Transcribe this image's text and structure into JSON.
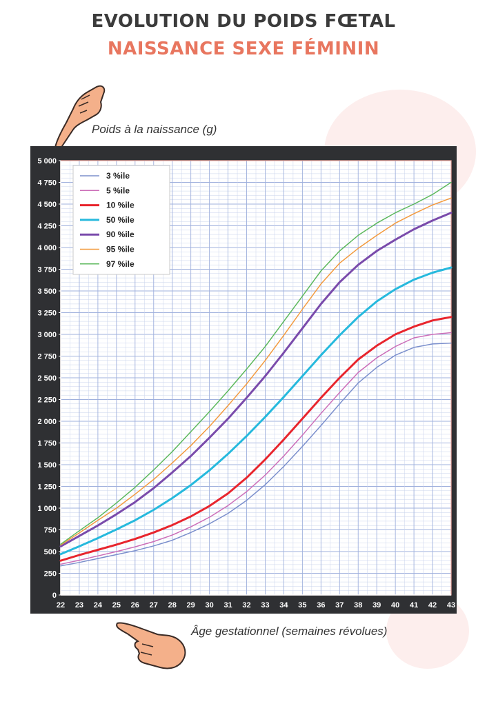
{
  "header": {
    "title": "EVOLUTION DU POIDS FŒTAL",
    "subtitle": "NAISSANCE SEXE FÉMININ"
  },
  "colors": {
    "title": "#3b3b3b",
    "subtitle": "#e8765f",
    "frame": "#2f3033",
    "grid": "#c9d3ec"
  },
  "chart_data": {
    "type": "line",
    "ylabel": "Poids à la naissance (g)",
    "xlabel": "Âge gestationnel (semaines révolues)",
    "x": [
      22,
      23,
      24,
      25,
      26,
      27,
      28,
      29,
      30,
      31,
      32,
      33,
      34,
      35,
      36,
      37,
      38,
      39,
      40,
      41,
      42,
      43
    ],
    "xlim": [
      22,
      43
    ],
    "ylim": [
      0,
      5000
    ],
    "y_ticks": [
      "0",
      "250",
      "500",
      "750",
      "1 000",
      "1 250",
      "1 500",
      "1 750",
      "2 000",
      "2 250",
      "2 500",
      "2 750",
      "3 000",
      "3 250",
      "3 500",
      "3 750",
      "4 000",
      "4 250",
      "4 500",
      "4 750",
      "5 000"
    ],
    "x_ticks": [
      "22",
      "23",
      "24",
      "25",
      "26",
      "27",
      "28",
      "29",
      "30",
      "31",
      "32",
      "33",
      "34",
      "35",
      "36",
      "37",
      "38",
      "39",
      "40",
      "41",
      "42",
      "43"
    ],
    "grid": true,
    "legend_position": "top-left",
    "series": [
      {
        "name": "3 %ile",
        "color": "#7b8fcc",
        "width": 1.5,
        "values": [
          335,
          375,
          420,
          465,
          510,
          565,
          630,
          720,
          820,
          940,
          1090,
          1270,
          1480,
          1710,
          1950,
          2200,
          2440,
          2620,
          2760,
          2850,
          2890,
          2900
        ]
      },
      {
        "name": "5 %ile",
        "color": "#cc6eb8",
        "width": 1.5,
        "values": [
          355,
          400,
          450,
          500,
          555,
          615,
          690,
          785,
          895,
          1030,
          1190,
          1380,
          1600,
          1840,
          2090,
          2330,
          2560,
          2730,
          2860,
          2960,
          3000,
          3020
        ]
      },
      {
        "name": "10 %ile",
        "color": "#e8252d",
        "width": 3,
        "values": [
          395,
          460,
          520,
          580,
          645,
          720,
          805,
          905,
          1025,
          1170,
          1350,
          1560,
          1790,
          2030,
          2270,
          2500,
          2710,
          2870,
          3000,
          3090,
          3160,
          3200
        ]
      },
      {
        "name": "50 %ile",
        "color": "#26b9dd",
        "width": 3,
        "values": [
          470,
          560,
          655,
          755,
          860,
          980,
          1115,
          1265,
          1435,
          1625,
          1830,
          2050,
          2280,
          2520,
          2760,
          2990,
          3200,
          3380,
          3520,
          3630,
          3710,
          3770
        ]
      },
      {
        "name": "90 %ile",
        "color": "#7a4bab",
        "width": 3,
        "values": [
          560,
          680,
          800,
          930,
          1070,
          1230,
          1410,
          1600,
          1810,
          2030,
          2270,
          2520,
          2790,
          3070,
          3350,
          3600,
          3800,
          3960,
          4090,
          4210,
          4310,
          4400
        ]
      },
      {
        "name": "95 %ile",
        "color": "#f39a3d",
        "width": 1.5,
        "values": [
          575,
          715,
          860,
          1000,
          1160,
          1330,
          1520,
          1720,
          1940,
          2180,
          2430,
          2700,
          2990,
          3290,
          3580,
          3820,
          3990,
          4140,
          4280,
          4390,
          4490,
          4570
        ]
      },
      {
        "name": "97 %ile",
        "color": "#5cb85c",
        "width": 1.5,
        "values": [
          585,
          740,
          890,
          1060,
          1240,
          1440,
          1650,
          1880,
          2110,
          2350,
          2600,
          2860,
          3150,
          3440,
          3730,
          3960,
          4140,
          4280,
          4400,
          4500,
          4610,
          4750
        ]
      }
    ]
  }
}
